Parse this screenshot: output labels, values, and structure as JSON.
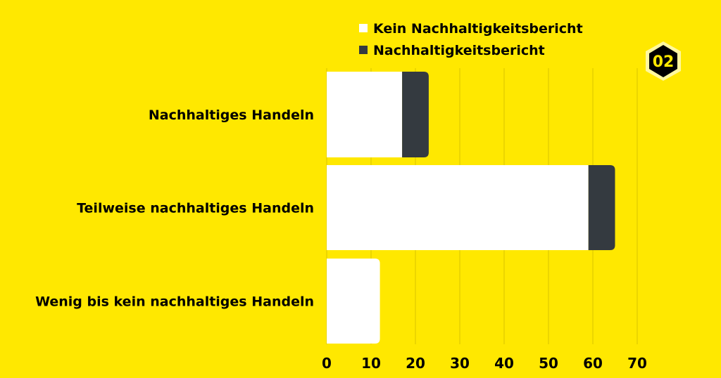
{
  "badge": "02",
  "chart_data": {
    "type": "bar",
    "orientation": "horizontal",
    "stacked": true,
    "categories": [
      "Nachhaltiges Handeln",
      "Teilweise nachhaltiges Handeln",
      "Wenig bis kein nachhaltiges Handeln"
    ],
    "series": [
      {
        "name": "Kein Nachhaltigkeitsbericht",
        "values": [
          17,
          59,
          12
        ],
        "color": "#FFFFFF"
      },
      {
        "name": "Nachhaltigkeitsbericht",
        "values": [
          6,
          6,
          0
        ],
        "color": "#343A40"
      }
    ],
    "x_ticks": [
      0,
      10,
      20,
      30,
      40,
      50,
      60,
      70
    ],
    "xlim": [
      0,
      70
    ],
    "grid": true,
    "legend_position": "top",
    "background": "#FFE800",
    "grid_color": "#D8C400"
  }
}
